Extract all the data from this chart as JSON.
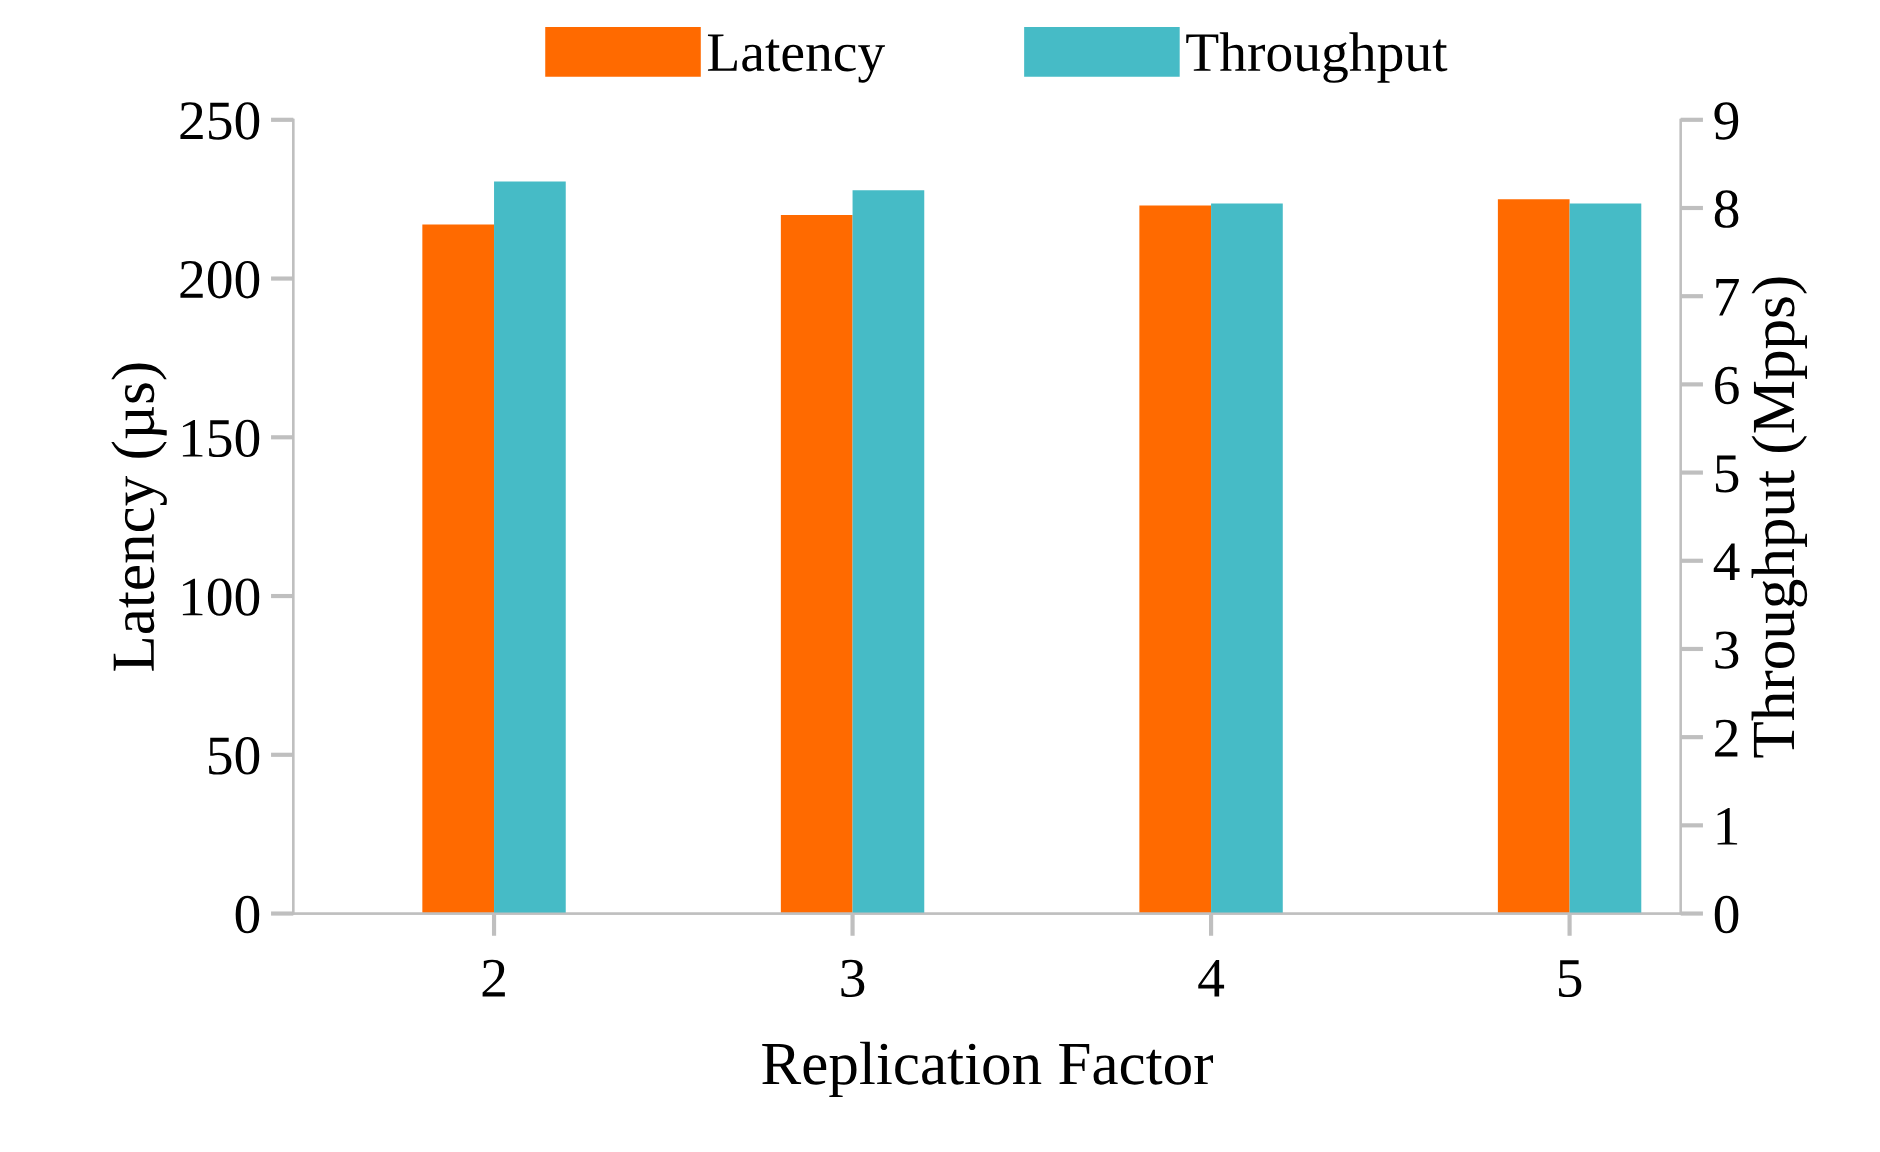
{
  "chart_data": {
    "type": "bar",
    "xlabel": "Replication Factor",
    "ylabel": "Latency (µs)",
    "y2label": "Throughput (Mpps)",
    "categories": [
      "2",
      "3",
      "4",
      "5"
    ],
    "series": [
      {
        "name": "Latency",
        "color": "#ff6a00",
        "values": [
          217,
          220,
          223,
          225
        ]
      },
      {
        "name": "Throughput",
        "color": "#46bbc6",
        "axis": "y2",
        "values": [
          8.3,
          8.2,
          8.05,
          8.05
        ]
      }
    ],
    "ylim": [
      0,
      250
    ],
    "yticks": [
      0,
      50,
      100,
      150,
      200,
      250
    ],
    "y2lim": [
      0,
      9
    ],
    "y2ticks": [
      0,
      1,
      2,
      3,
      4,
      5,
      6,
      7,
      8,
      9
    ],
    "grid": false,
    "legend": "top"
  }
}
